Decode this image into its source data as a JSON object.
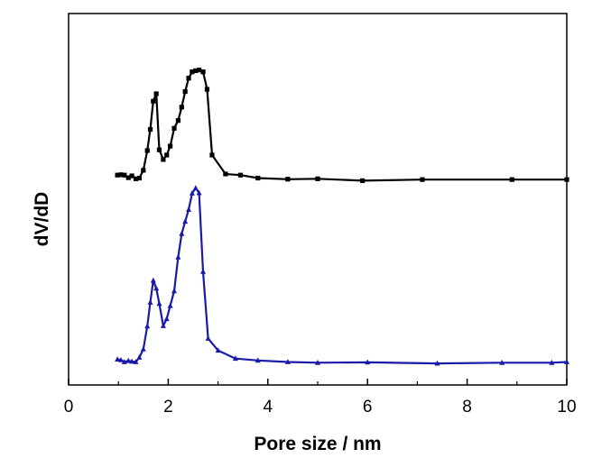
{
  "chart_data": {
    "type": "line",
    "title": "",
    "xlabel": "Pore size / nm",
    "ylabel": "dV/dD",
    "xlim": [
      0,
      10
    ],
    "ylim": [
      0,
      1
    ],
    "x_ticks": [
      0,
      2,
      4,
      6,
      8,
      10
    ],
    "y_ticks_shown": false,
    "grid": false,
    "legend": "none",
    "series": [
      {
        "color": "#000000",
        "marker": "square",
        "x": [
          0.98,
          1.05,
          1.12,
          1.2,
          1.27,
          1.35,
          1.42,
          1.5,
          1.58,
          1.64,
          1.7,
          1.76,
          1.82,
          1.9,
          1.97,
          2.04,
          2.12,
          2.2,
          2.27,
          2.34,
          2.41,
          2.48,
          2.55,
          2.62,
          2.7,
          2.78,
          2.88,
          3.15,
          3.45,
          3.8,
          4.4,
          5.0,
          5.9,
          7.1,
          8.9,
          10.0
        ],
        "y": [
          0.565,
          0.566,
          0.565,
          0.558,
          0.563,
          0.555,
          0.557,
          0.578,
          0.631,
          0.688,
          0.764,
          0.784,
          0.633,
          0.607,
          0.619,
          0.643,
          0.691,
          0.712,
          0.748,
          0.79,
          0.826,
          0.843,
          0.846,
          0.848,
          0.843,
          0.796,
          0.619,
          0.568,
          0.565,
          0.557,
          0.554,
          0.555,
          0.55,
          0.553,
          0.553,
          0.553
        ]
      },
      {
        "color": "#1a1aa8",
        "marker": "triangle",
        "x": [
          0.98,
          1.05,
          1.12,
          1.2,
          1.27,
          1.35,
          1.42,
          1.5,
          1.58,
          1.64,
          1.7,
          1.76,
          1.82,
          1.9,
          1.97,
          2.04,
          2.12,
          2.2,
          2.27,
          2.34,
          2.41,
          2.48,
          2.55,
          2.62,
          2.7,
          2.8,
          3.0,
          3.35,
          3.8,
          4.4,
          5.0,
          6.0,
          7.4,
          8.7,
          9.7,
          10.0
        ],
        "y": [
          0.069,
          0.067,
          0.062,
          0.065,
          0.063,
          0.062,
          0.074,
          0.096,
          0.158,
          0.222,
          0.281,
          0.26,
          0.219,
          0.159,
          0.178,
          0.213,
          0.253,
          0.344,
          0.407,
          0.44,
          0.472,
          0.516,
          0.53,
          0.517,
          0.305,
          0.125,
          0.093,
          0.071,
          0.066,
          0.062,
          0.06,
          0.061,
          0.058,
          0.06,
          0.06,
          0.062
        ]
      }
    ]
  }
}
